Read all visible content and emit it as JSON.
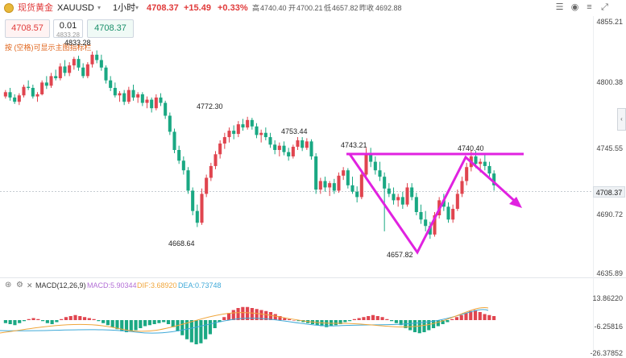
{
  "header": {
    "symbol_name": "现货黄金",
    "symbol_code": "XAUUSD",
    "interval": "1小时",
    "price": "4708.37",
    "change": "+15.49",
    "change_pct": "+0.33%",
    "high_label": "高",
    "high": "4740.40",
    "open_label": "开",
    "open": "4700.21",
    "low_label": "低",
    "low": "4657.82",
    "prev_close_label": "昨收",
    "prev_close": "4692.88"
  },
  "trade": {
    "sell_price": "4708.57",
    "lot_size": "0.01",
    "lot_hint": "4833.28",
    "buy_price": "4708.37"
  },
  "hint_text": "按 (空格)可显示主图指标栏",
  "price_axis": [
    "4855.21",
    "4800.38",
    "4745.55",
    "4690.72",
    "4635.89"
  ],
  "current_price_tag": "4708.37",
  "macd_axis": [
    "13.86220",
    "-6.25816",
    "-26.37852"
  ],
  "annotations": {
    "high1": "4833.28",
    "high2": "4772.30",
    "high3": "4753.44",
    "high4": "4743.21",
    "high5": "4740.40",
    "low1": "4668.64",
    "low2": "4657.82"
  },
  "macd": {
    "label": "MACD(12,26,9)",
    "macd": "MACD:5.90344",
    "dif": "DIF:3.68920",
    "dea": "DEA:0.73748"
  },
  "colors": {
    "up": "#e0454f",
    "down": "#1aa883",
    "line": "#e022e0",
    "dif": "#f0a63c",
    "dea": "#3fa9d8"
  },
  "chart_data": {
    "type": "candlestick",
    "interval": "1小时",
    "y_range": [
      4625,
      4860
    ],
    "candles": [
      [
        4791,
        4797,
        4789,
        4795
      ],
      [
        4795,
        4799,
        4787,
        4790
      ],
      [
        4790,
        4793,
        4784,
        4786
      ],
      [
        4786,
        4794,
        4783,
        4792
      ],
      [
        4792,
        4802,
        4790,
        4800
      ],
      [
        4800,
        4806,
        4797,
        4799
      ],
      [
        4799,
        4802,
        4789,
        4791
      ],
      [
        4791,
        4795,
        4786,
        4793
      ],
      [
        4793,
        4806,
        4792,
        4804
      ],
      [
        4804,
        4810,
        4798,
        4801
      ],
      [
        4801,
        4813,
        4799,
        4810
      ],
      [
        4810,
        4816,
        4806,
        4808
      ],
      [
        4808,
        4822,
        4806,
        4819
      ],
      [
        4819,
        4825,
        4810,
        4813
      ],
      [
        4813,
        4823,
        4810,
        4820
      ],
      [
        4820,
        4828,
        4816,
        4826
      ],
      [
        4826,
        4829,
        4815,
        4818
      ],
      [
        4818,
        4822,
        4808,
        4810
      ],
      [
        4810,
        4823,
        4808,
        4821
      ],
      [
        4821,
        4833,
        4818,
        4830
      ],
      [
        4830,
        4834,
        4822,
        4825
      ],
      [
        4825,
        4830,
        4815,
        4818
      ],
      [
        4818,
        4820,
        4803,
        4806
      ],
      [
        4806,
        4810,
        4796,
        4799
      ],
      [
        4799,
        4804,
        4790,
        4792
      ],
      [
        4792,
        4796,
        4786,
        4794
      ],
      [
        4794,
        4797,
        4783,
        4786
      ],
      [
        4786,
        4800,
        4784,
        4797
      ],
      [
        4797,
        4802,
        4787,
        4790
      ],
      [
        4790,
        4795,
        4785,
        4793
      ],
      [
        4793,
        4795,
        4782,
        4785
      ],
      [
        4785,
        4791,
        4780,
        4788
      ],
      [
        4788,
        4790,
        4776,
        4780
      ],
      [
        4780,
        4793,
        4778,
        4790
      ],
      [
        4790,
        4794,
        4782,
        4785
      ],
      [
        4785,
        4787,
        4770,
        4773
      ],
      [
        4773,
        4776,
        4755,
        4758
      ],
      [
        4758,
        4761,
        4738,
        4741
      ],
      [
        4741,
        4745,
        4728,
        4731
      ],
      [
        4731,
        4735,
        4718,
        4722
      ],
      [
        4722,
        4725,
        4700,
        4703
      ],
      [
        4703,
        4706,
        4680,
        4684
      ],
      [
        4684,
        4690,
        4669,
        4673
      ],
      [
        4673,
        4705,
        4671,
        4700
      ],
      [
        4700,
        4718,
        4697,
        4715
      ],
      [
        4715,
        4729,
        4712,
        4726
      ],
      [
        4726,
        4740,
        4723,
        4737
      ],
      [
        4737,
        4750,
        4733,
        4747
      ],
      [
        4747,
        4757,
        4742,
        4753
      ],
      [
        4753,
        4762,
        4748,
        4759
      ],
      [
        4759,
        4764,
        4751,
        4756
      ],
      [
        4756,
        4768,
        4753,
        4765
      ],
      [
        4765,
        4770,
        4759,
        4762
      ],
      [
        4762,
        4772,
        4760,
        4769
      ],
      [
        4769,
        4771,
        4760,
        4763
      ],
      [
        4763,
        4766,
        4752,
        4755
      ],
      [
        4755,
        4760,
        4748,
        4757
      ],
      [
        4757,
        4762,
        4750,
        4753
      ],
      [
        4753,
        4757,
        4743,
        4746
      ],
      [
        4746,
        4750,
        4737,
        4741
      ],
      [
        4741,
        4748,
        4735,
        4745
      ],
      [
        4745,
        4749,
        4736,
        4739
      ],
      [
        4739,
        4743,
        4731,
        4735
      ],
      [
        4735,
        4746,
        4733,
        4744
      ],
      [
        4744,
        4753,
        4741,
        4750
      ],
      [
        4750,
        4753,
        4740,
        4743
      ],
      [
        4743,
        4752,
        4741,
        4749
      ],
      [
        4749,
        4751,
        4732,
        4735
      ],
      [
        4735,
        4738,
        4700,
        4704
      ],
      [
        4704,
        4715,
        4700,
        4712
      ],
      [
        4712,
        4716,
        4702,
        4706
      ],
      [
        4706,
        4712,
        4698,
        4710
      ],
      [
        4710,
        4714,
        4700,
        4703
      ],
      [
        4703,
        4720,
        4701,
        4717
      ],
      [
        4717,
        4725,
        4713,
        4722
      ],
      [
        4722,
        4724,
        4705,
        4708
      ],
      [
        4708,
        4716,
        4700,
        4702
      ],
      [
        4702,
        4707,
        4692,
        4697
      ],
      [
        4697,
        4720,
        4695,
        4718
      ],
      [
        4718,
        4743,
        4715,
        4738
      ],
      [
        4738,
        4743,
        4725,
        4730
      ],
      [
        4730,
        4735,
        4718,
        4722
      ],
      [
        4722,
        4730,
        4712,
        4716
      ],
      [
        4716,
        4720,
        4665,
        4705
      ],
      [
        4705,
        4710,
        4697,
        4700
      ],
      [
        4700,
        4706,
        4690,
        4694
      ],
      [
        4694,
        4700,
        4688,
        4697
      ],
      [
        4697,
        4702,
        4686,
        4690
      ],
      [
        4690,
        4710,
        4688,
        4706
      ],
      [
        4706,
        4710,
        4694,
        4697
      ],
      [
        4697,
        4701,
        4680,
        4683
      ],
      [
        4683,
        4690,
        4672,
        4676
      ],
      [
        4676,
        4684,
        4665,
        4670
      ],
      [
        4670,
        4674,
        4658,
        4662
      ],
      [
        4662,
        4683,
        4660,
        4680
      ],
      [
        4680,
        4697,
        4677,
        4694
      ],
      [
        4694,
        4700,
        4684,
        4688
      ],
      [
        4688,
        4692,
        4673,
        4676
      ],
      [
        4676,
        4690,
        4673,
        4686
      ],
      [
        4686,
        4704,
        4684,
        4700
      ],
      [
        4700,
        4716,
        4697,
        4712
      ],
      [
        4712,
        4729,
        4708,
        4725
      ],
      [
        4725,
        4741,
        4721,
        4735
      ],
      [
        4735,
        4740,
        4724,
        4728
      ],
      [
        4728,
        4733,
        4720,
        4730
      ],
      [
        4730,
        4738,
        4722,
        4726
      ],
      [
        4726,
        4730,
        4716,
        4719
      ],
      [
        4719,
        4722,
        4703,
        4708
      ]
    ],
    "macd_hist": [
      -3,
      -4,
      -5,
      -3,
      -1,
      1,
      2,
      1,
      -1,
      -3,
      -4,
      -2,
      1,
      3,
      4,
      5,
      4,
      3,
      2,
      1,
      -1,
      -3,
      -5,
      -7,
      -9,
      -11,
      -12,
      -11,
      -10,
      -8,
      -6,
      -5,
      -4,
      -3,
      -2,
      -4,
      -7,
      -11,
      -15,
      -19,
      -22,
      -24,
      -23,
      -19,
      -14,
      -8,
      -2,
      3,
      7,
      10,
      12,
      13,
      13,
      12,
      11,
      10,
      9,
      8,
      6,
      4,
      2,
      1,
      0,
      -1,
      -2,
      -3,
      -4,
      -5,
      -6,
      -7,
      -6,
      -5,
      -4,
      -2,
      -1,
      1,
      2,
      3,
      4,
      5,
      4,
      3,
      1,
      -1,
      -3,
      -5,
      -8,
      -10,
      -12,
      -13,
      -12,
      -10,
      -8,
      -6,
      -4,
      -2,
      1,
      3,
      5,
      7,
      9,
      10,
      8,
      6,
      5,
      4
    ]
  }
}
